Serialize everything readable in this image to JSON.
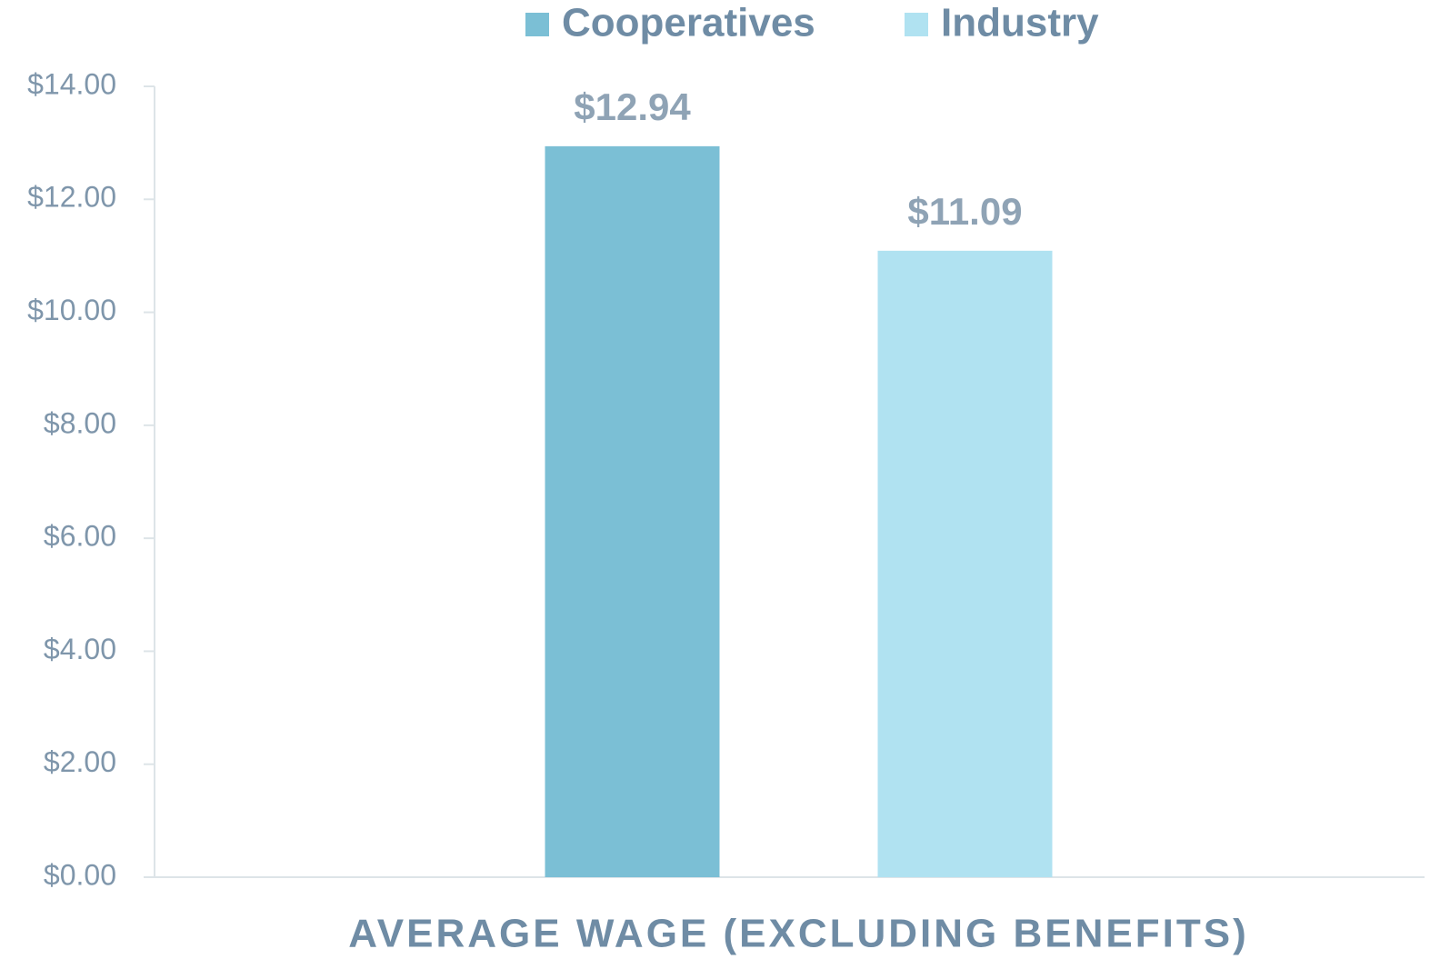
{
  "chart_data": {
    "type": "bar",
    "categories": [
      "AVERAGE WAGE (EXCLUDING BENEFITS)"
    ],
    "series": [
      {
        "name": "Cooperatives",
        "color": "#7bbfd5",
        "values": [
          12.94
        ],
        "value_labels": [
          "$12.94"
        ]
      },
      {
        "name": "Industry",
        "color": "#b0e2f1",
        "values": [
          11.09
        ],
        "value_labels": [
          "$11.09"
        ]
      }
    ],
    "ylim": [
      0,
      14
    ],
    "yticks": [
      {
        "value": 0,
        "label": "$0.00"
      },
      {
        "value": 2,
        "label": "$2.00"
      },
      {
        "value": 4,
        "label": "$4.00"
      },
      {
        "value": 6,
        "label": "$6.00"
      },
      {
        "value": 8,
        "label": "$8.00"
      },
      {
        "value": 10,
        "label": "$10.00"
      },
      {
        "value": 12,
        "label": "$12.00"
      },
      {
        "value": 14,
        "label": "$14.00"
      }
    ],
    "legend": "top"
  }
}
